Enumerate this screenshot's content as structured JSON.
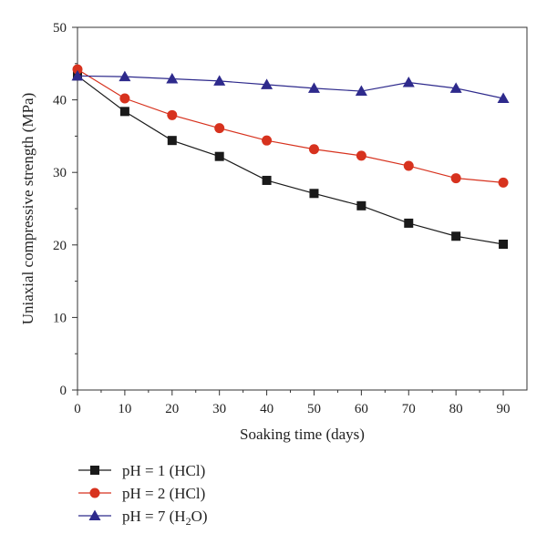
{
  "chart_data": {
    "type": "line",
    "title": "",
    "xlabel": "Soaking time (days)",
    "ylabel": "Uniaxial compressive strength (MPa)",
    "x": [
      0,
      10,
      20,
      30,
      40,
      50,
      60,
      70,
      80,
      90
    ],
    "xlim": [
      0,
      95
    ],
    "ylim": [
      0,
      50
    ],
    "xticks": [
      0,
      10,
      20,
      30,
      40,
      50,
      60,
      70,
      80,
      90
    ],
    "yticks": [
      0,
      10,
      20,
      30,
      40,
      50
    ],
    "grid": false,
    "legend_position": "bottom-left below plot",
    "series": [
      {
        "name": "pH = 1 (HCl)",
        "name_main": "pH = 1 (HCl)",
        "name_sub": "",
        "name_tail": "",
        "marker": "square",
        "color": "#1a1a1a",
        "line_color": "#1a1a1a",
        "values": [
          43.3,
          38.4,
          34.4,
          32.2,
          28.9,
          27.1,
          25.4,
          23.0,
          21.2,
          20.1
        ]
      },
      {
        "name": "pH = 2 (HCl)",
        "name_main": "pH = 2 (HCl)",
        "name_sub": "",
        "name_tail": "",
        "marker": "circle",
        "color": "#d7321e",
        "line_color": "#d7321e",
        "values": [
          44.2,
          40.2,
          37.9,
          36.1,
          34.4,
          33.2,
          32.3,
          30.9,
          29.2,
          28.6
        ]
      },
      {
        "name": "pH = 7 (H2O)",
        "name_main": "pH = 7 (H",
        "name_sub": "2",
        "name_tail": "O)",
        "marker": "triangle",
        "color": "#2e2a8c",
        "line_color": "#2e2a8c",
        "values": [
          43.3,
          43.2,
          42.9,
          42.6,
          42.1,
          41.6,
          41.2,
          42.4,
          41.6,
          40.2
        ]
      }
    ]
  }
}
